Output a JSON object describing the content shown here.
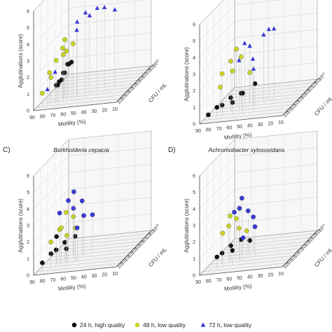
{
  "legend": [
    {
      "marker": "circle",
      "color": "#111111",
      "label": "24 h, high quality"
    },
    {
      "marker": "circle",
      "color": "#c8d420",
      "label": "48 h, low quality"
    },
    {
      "marker": "triangle",
      "color": "#3a3ad8",
      "label": "72 h, low quality"
    }
  ],
  "chart_data": [
    {
      "type": "scatter",
      "panel_label": "",
      "title": "",
      "xlabel": "Motility (%)",
      "ylabel": "CFU / mL",
      "zlabel": "Agglutinations (score)",
      "x_ticks": [
        "90",
        "80",
        "70",
        "60",
        "50",
        "40",
        "30",
        "20",
        "10"
      ],
      "y_ticks": [
        "10⁰",
        "10¹",
        "10²",
        "10³",
        "10⁴",
        "10⁵",
        "10⁶",
        "10⁷",
        "10⁸",
        "10⁹",
        "10¹⁰"
      ],
      "z_ticks": [
        "0",
        "1",
        "2",
        "3",
        "4",
        "5",
        "6"
      ],
      "xlim": [
        90,
        10
      ],
      "ylim": [
        0,
        10
      ],
      "zlim": [
        0,
        6
      ],
      "series": [
        {
          "name": "24 h, high quality",
          "marker": "circle",
          "color": "#111111",
          "points": [
            [
              75,
              2,
              1
            ],
            [
              72,
              2,
              1.2
            ],
            [
              70,
              3,
              1.5
            ],
            [
              68,
              2,
              1.7
            ],
            [
              66,
              3,
              2.0
            ],
            [
              64,
              2,
              2.2
            ],
            [
              70,
              1,
              1.2
            ],
            [
              60,
              2,
              2.3
            ],
            [
              73,
              3,
              1.1
            ]
          ]
        },
        {
          "name": "48 h, low quality",
          "marker": "circle",
          "color": "#c8d420",
          "points": [
            [
              85,
              1,
              0.8
            ],
            [
              80,
              2,
              1.5
            ],
            [
              75,
              2,
              2.5
            ],
            [
              72,
              3,
              3.0
            ],
            [
              68,
              2,
              2.8
            ],
            [
              70,
              3,
              3.5
            ],
            [
              65,
              2,
              3.0
            ],
            [
              62,
              3,
              3.2
            ],
            [
              78,
              1,
              2.0
            ]
          ]
        },
        {
          "name": "72 h, low quality",
          "marker": "triangle",
          "color": "#3a3ad8",
          "points": [
            [
              58,
              3,
              4.5
            ],
            [
              50,
              3,
              5.0
            ],
            [
              42,
              4,
              5.0
            ],
            [
              35,
              4,
              5.0
            ],
            [
              25,
              4,
              4.8
            ],
            [
              55,
              2,
              4.2
            ],
            [
              46,
              3,
              4.8
            ],
            [
              80,
              1,
              1.0
            ],
            [
              76,
              2,
              1.8
            ]
          ]
        }
      ]
    },
    {
      "type": "scatter",
      "panel_label": "",
      "title": "",
      "xlabel": "Motility (%)",
      "ylabel": "CFU / mL",
      "zlabel": "Agglutinations (score)",
      "x_ticks": [
        "90",
        "80",
        "70",
        "60",
        "50",
        "40",
        "30",
        "20",
        "10"
      ],
      "y_ticks": [
        "10⁰",
        "10¹",
        "10²",
        "10³",
        "10⁴",
        "10⁵",
        "10⁶",
        "10⁷",
        "10⁸",
        "10⁹",
        "10¹⁰"
      ],
      "z_ticks": [
        "0",
        "1",
        "2",
        "3",
        "4",
        "5",
        "6"
      ],
      "xlim": [
        90,
        10
      ],
      "ylim": [
        0,
        10
      ],
      "zlim": [
        0,
        6
      ],
      "series": [
        {
          "name": "24 h, high quality",
          "marker": "circle",
          "color": "#111111",
          "points": [
            [
              85,
              1,
              0.3
            ],
            [
              80,
              2,
              0.5
            ],
            [
              75,
              2,
              0.6
            ],
            [
              70,
              3,
              0.8
            ],
            [
              65,
              2,
              0.7
            ],
            [
              60,
              3,
              1.0
            ],
            [
              55,
              2,
              1.2
            ],
            [
              50,
              4,
              1.3
            ]
          ]
        },
        {
          "name": "48 h, low quality",
          "marker": "circle",
          "color": "#c8d420",
          "points": [
            [
              80,
              3,
              1.5
            ],
            [
              75,
              2,
              2.5
            ],
            [
              70,
              3,
              3.0
            ],
            [
              65,
              2,
              2.6
            ],
            [
              60,
              3,
              3.2
            ],
            [
              55,
              4,
              2.0
            ],
            [
              68,
              4,
              3.5
            ]
          ]
        },
        {
          "name": "72 h, low quality",
          "marker": "triangle",
          "color": "#3a3ad8",
          "points": [
            [
              60,
              4,
              3.8
            ],
            [
              55,
              4,
              3.6
            ],
            [
              45,
              5,
              4.0
            ],
            [
              40,
              5,
              4.3
            ],
            [
              35,
              5,
              4.3
            ],
            [
              62,
              3,
              3.0
            ],
            [
              52,
              4,
              2.8
            ],
            [
              48,
              3,
              2.4
            ]
          ]
        }
      ]
    },
    {
      "type": "scatter",
      "panel_label": "C)",
      "title": "Burkholderia cepacia",
      "xlabel": "Motility (%)",
      "ylabel": "CFU / mL",
      "zlabel": "Agglutinations (score)",
      "x_ticks": [
        "90",
        "80",
        "70",
        "60",
        "50",
        "40",
        "30",
        "20",
        "10"
      ],
      "y_ticks": [
        "10⁰",
        "10¹",
        "10²",
        "10³",
        "10⁴",
        "10⁵",
        "10⁶",
        "10⁷",
        "10⁸",
        "10⁹",
        "10¹⁰"
      ],
      "z_ticks": [
        "0",
        "1",
        "2",
        "3",
        "4",
        "5",
        "6"
      ],
      "xlim": [
        90,
        10
      ],
      "ylim": [
        0,
        10
      ],
      "zlim": [
        0,
        6
      ],
      "series": [
        {
          "name": "24 h, high quality",
          "marker": "circle",
          "color": "#111111",
          "points": [
            [
              85,
              1,
              0.5
            ],
            [
              80,
              2,
              0.8
            ],
            [
              75,
              2,
              1.0
            ],
            [
              70,
              3,
              1.2
            ],
            [
              65,
              2,
              1.0
            ],
            [
              60,
              3,
              1.5
            ],
            [
              78,
              3,
              1.6
            ]
          ]
        },
        {
          "name": "48 h, low quality",
          "marker": "circle",
          "color": "#c8d420",
          "points": [
            [
              80,
              2,
              1.5
            ],
            [
              75,
              3,
              2.0
            ],
            [
              70,
              2,
              2.3
            ],
            [
              65,
              4,
              2.5
            ],
            [
              60,
              3,
              2.0
            ],
            [
              72,
              4,
              2.8
            ],
            [
              68,
              3,
              1.6
            ]
          ]
        },
        {
          "name": "72 h, low quality",
          "marker": "circle",
          "color": "#3a3ad8",
          "points": [
            [
              75,
              3,
              3.0
            ],
            [
              70,
              4,
              3.5
            ],
            [
              65,
              4,
              3.0
            ],
            [
              60,
              5,
              3.2
            ],
            [
              55,
              4,
              2.5
            ],
            [
              50,
              5,
              2.3
            ],
            [
              68,
              5,
              3.8
            ],
            [
              58,
              3,
              2.0
            ]
          ]
        }
      ]
    },
    {
      "type": "scatter",
      "panel_label": "D)",
      "title": "Achromobacter xylosoxidans",
      "xlabel": "Motility (%)",
      "ylabel": "CFU / mL",
      "zlabel": "Agglutinations (score)",
      "x_ticks": [
        "90",
        "80",
        "70",
        "60",
        "50",
        "40",
        "30",
        "20",
        "10"
      ],
      "y_ticks": [
        "10⁰",
        "10¹",
        "10²",
        "10³",
        "10⁴",
        "10⁵",
        "10⁶",
        "10⁷",
        "10⁸",
        "10⁹",
        "10¹⁰"
      ],
      "z_ticks": [
        "0",
        "1",
        "2",
        "3",
        "4",
        "5",
        "6"
      ],
      "xlim": [
        90,
        10
      ],
      "ylim": [
        0,
        10
      ],
      "zlim": [
        0,
        6
      ],
      "series": [
        {
          "name": "24 h, high quality",
          "marker": "circle",
          "color": "#111111",
          "points": [
            [
              80,
              2,
              0.6
            ],
            [
              75,
              2,
              0.8
            ],
            [
              70,
              3,
              1.0
            ],
            [
              65,
              2,
              0.9
            ],
            [
              60,
              3,
              1.3
            ],
            [
              55,
              4,
              1.0
            ]
          ]
        },
        {
          "name": "48 h, low quality",
          "marker": "circle",
          "color": "#c8d420",
          "points": [
            [
              78,
              3,
              1.8
            ],
            [
              72,
              3,
              2.2
            ],
            [
              68,
              4,
              2.4
            ],
            [
              62,
              3,
              2.0
            ],
            [
              58,
              4,
              1.6
            ],
            [
              74,
              4,
              2.6
            ]
          ]
        },
        {
          "name": "72 h, low quality",
          "marker": "circle",
          "color": "#3a3ad8",
          "points": [
            [
              70,
              4,
              2.8
            ],
            [
              65,
              4,
              3.0
            ],
            [
              60,
              5,
              2.6
            ],
            [
              55,
              5,
              2.2
            ],
            [
              50,
              4,
              1.8
            ],
            [
              66,
              5,
              3.4
            ],
            [
              58,
              3,
              1.4
            ]
          ]
        }
      ]
    }
  ]
}
